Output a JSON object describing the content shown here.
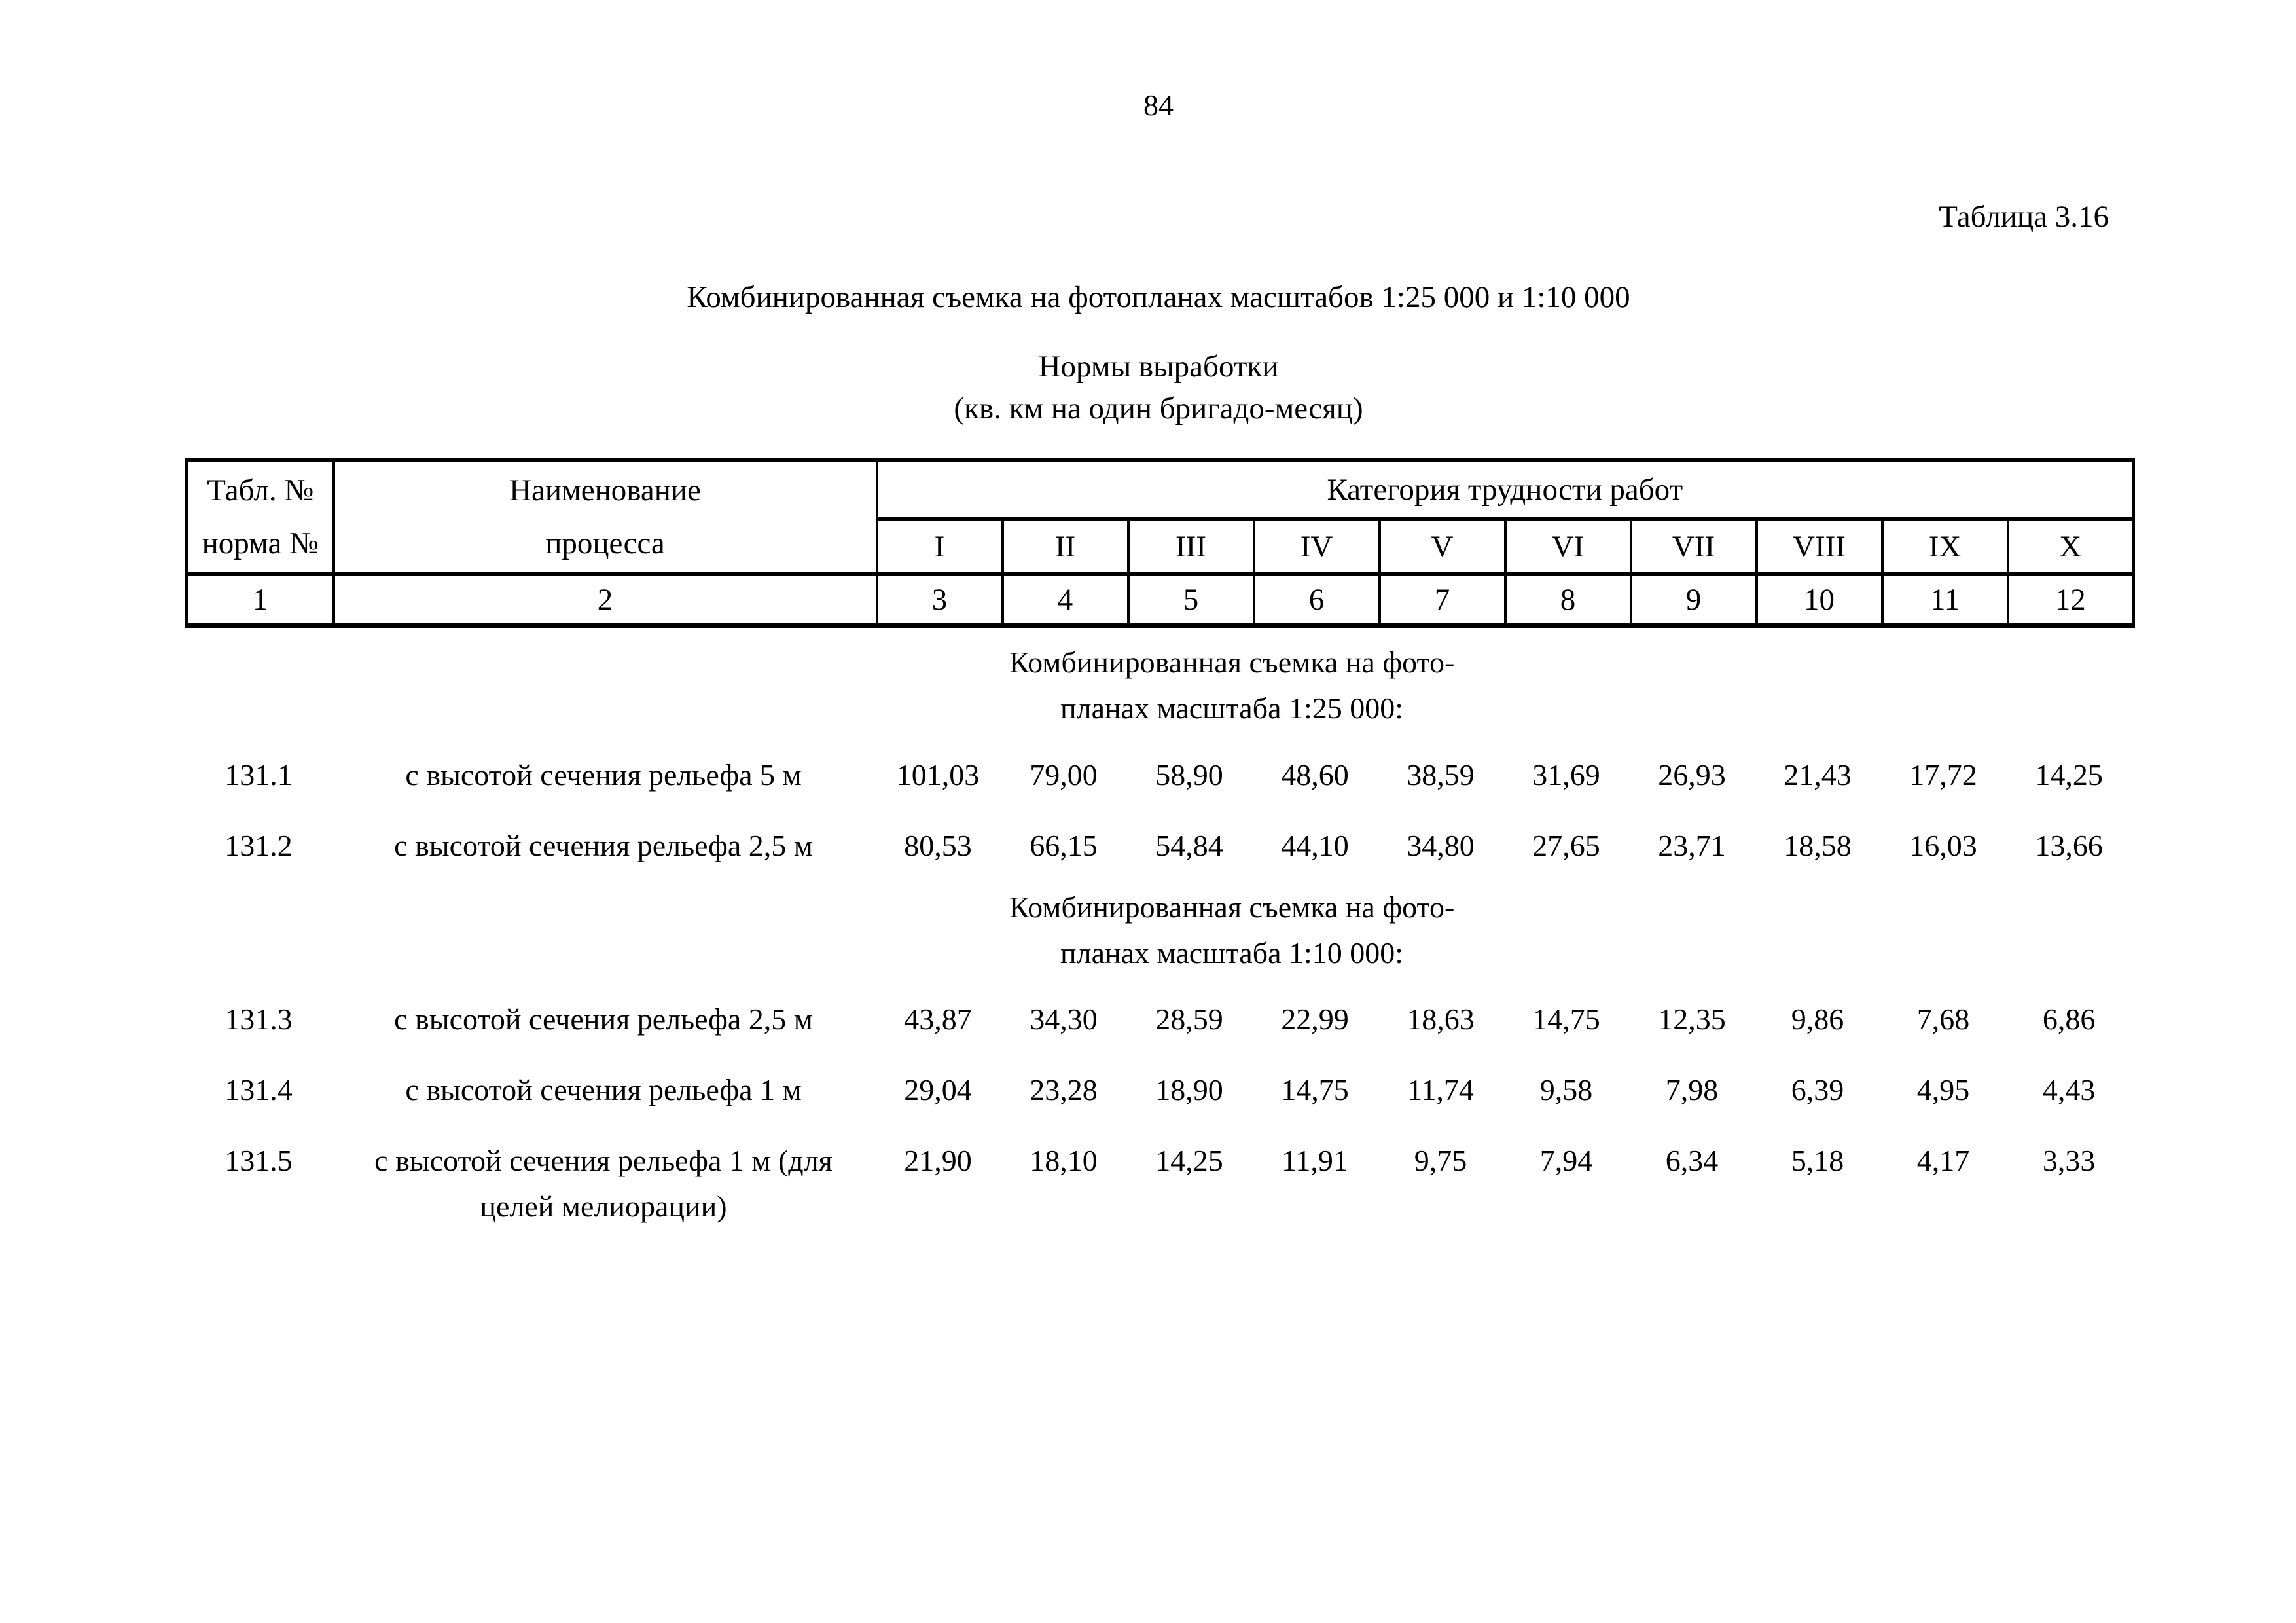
{
  "page": {
    "number": "84",
    "table_label": "Таблица 3.16",
    "title": "Комбинированная съемка на фотопланах масштабов 1:25 000 и 1:10 000",
    "subtitle": "Нормы выработки\n(кв. км на один бригадо-месяц)"
  },
  "table": {
    "header": {
      "col1": "Табл. №\nнорма №",
      "col2": "Наименование\nпроцесса",
      "category": "Категория трудности работ",
      "categories": [
        "I",
        "II",
        "III",
        "IV",
        "V",
        "VI",
        "VII",
        "VIII",
        "IX",
        "X"
      ],
      "column_numbers": [
        "1",
        "2",
        "3",
        "4",
        "5",
        "6",
        "7",
        "8",
        "9",
        "10",
        "11",
        "12"
      ]
    },
    "rows": [
      {
        "type": "group",
        "label": "Комбинированная съемка на фото-\nпланах масштаба 1:25 000:"
      },
      {
        "type": "data",
        "num": "131.1",
        "label": "с высотой сечения рельефа 5 м",
        "values": [
          "101,03",
          "79,00",
          "58,90",
          "48,60",
          "38,59",
          "31,69",
          "26,93",
          "21,43",
          "17,72",
          "14,25"
        ]
      },
      {
        "type": "data",
        "num": "131.2",
        "label": "с высотой сечения рельефа 2,5 м",
        "values": [
          "80,53",
          "66,15",
          "54,84",
          "44,10",
          "34,80",
          "27,65",
          "23,71",
          "18,58",
          "16,03",
          "13,66"
        ]
      },
      {
        "type": "group",
        "label": "Комбинированная съемка на фото-\nпланах масштаба 1:10 000:"
      },
      {
        "type": "data",
        "num": "131.3",
        "label": "с высотой сечения рельефа 2,5  м",
        "values": [
          "43,87",
          "34,30",
          "28,59",
          "22,99",
          "18,63",
          "14,75",
          "12,35",
          "9,86",
          "7,68",
          "6,86"
        ]
      },
      {
        "type": "data",
        "num": "131.4",
        "label": "с высотой сечения рельефа 1 м",
        "values": [
          "29,04",
          "23,28",
          "18,90",
          "14,75",
          "11,74",
          "9,58",
          "7,98",
          "6,39",
          "4,95",
          "4,43"
        ]
      },
      {
        "type": "data",
        "num": "131.5",
        "label": "с высотой сечения рельефа 1 м (для\nцелей мелиорации)",
        "values": [
          "21,90",
          "18,10",
          "14,25",
          "11,91",
          "9,75",
          "7,94",
          "6,34",
          "5,18",
          "4,17",
          "3,33"
        ]
      }
    ]
  }
}
